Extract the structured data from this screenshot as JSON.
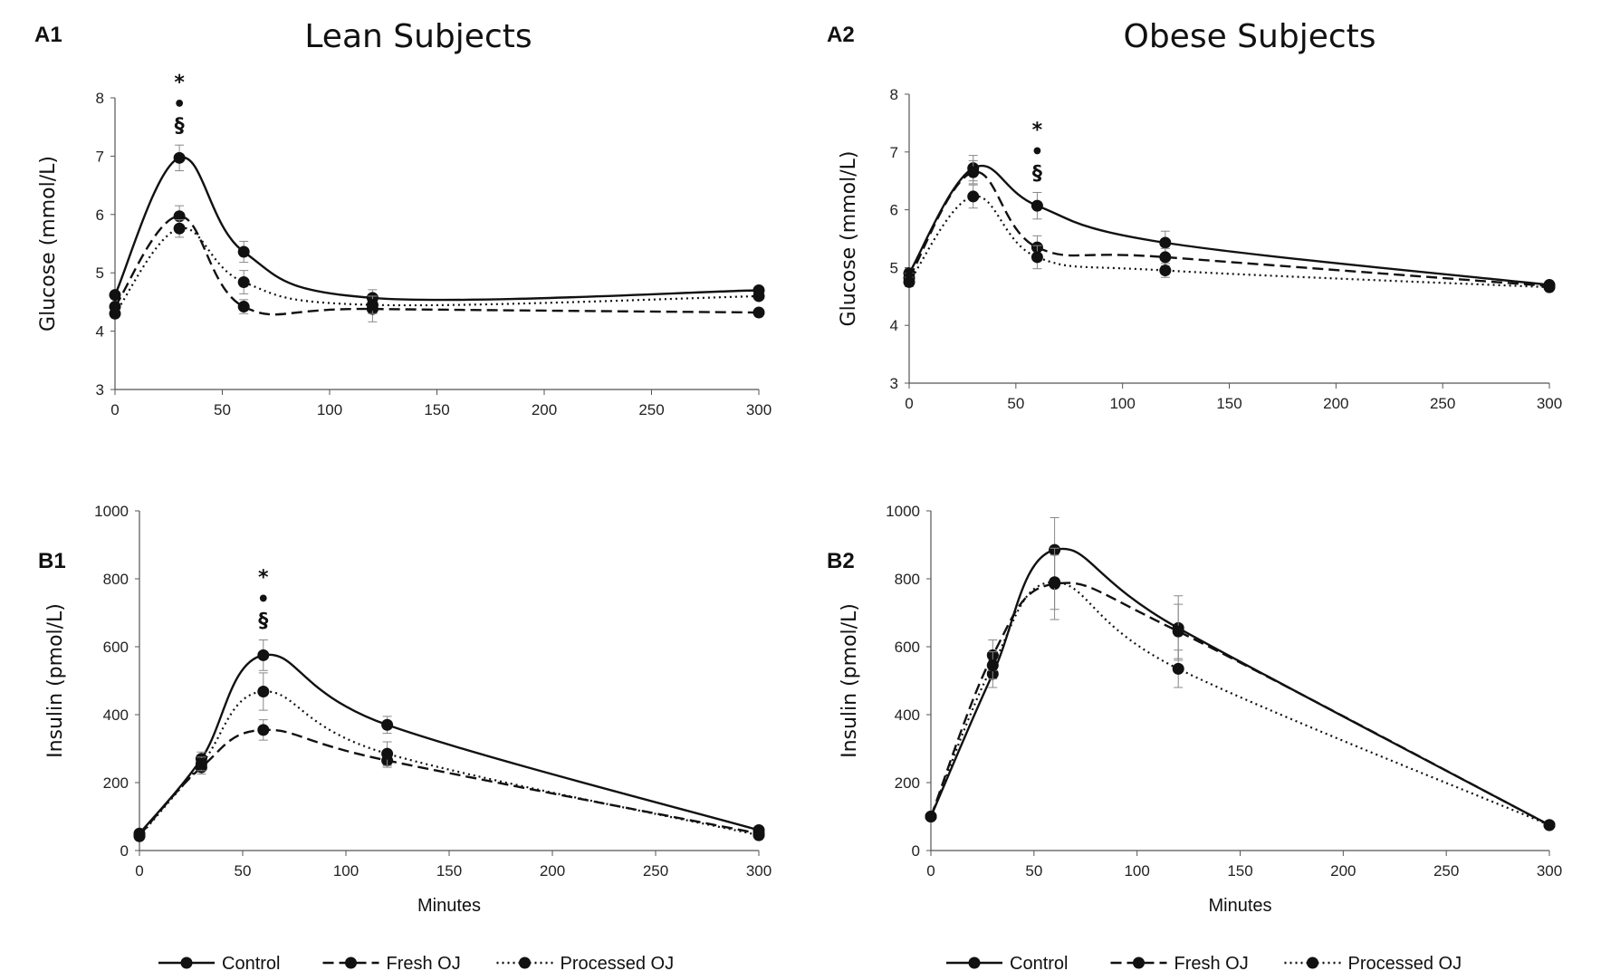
{
  "chart_data": [
    {
      "panel": "A1",
      "type": "line",
      "title": "Lean Subjects",
      "xlabel": "",
      "ylabel": "Glucose (mmol/L)",
      "xlim": [
        0,
        300
      ],
      "ylim": [
        3,
        8
      ],
      "xticks": [
        "0",
        "50",
        "100",
        "150",
        "200",
        "250",
        "300"
      ],
      "yticks": [
        "3",
        "4",
        "5",
        "6",
        "7",
        "8"
      ],
      "x": [
        0,
        30,
        60,
        120,
        300
      ],
      "series": [
        {
          "name": "Control",
          "style": "solid",
          "values": [
            4.62,
            6.97,
            5.36,
            4.57,
            4.7
          ],
          "errors": [
            0.05,
            0.22,
            0.18,
            0.14,
            0.05
          ]
        },
        {
          "name": "Fresh OJ",
          "style": "dashed",
          "values": [
            4.42,
            5.97,
            4.42,
            4.38,
            4.32
          ],
          "errors": [
            0.06,
            0.18,
            0.12,
            0.22,
            0.05
          ]
        },
        {
          "name": "Processed OJ",
          "style": "dotted",
          "values": [
            4.3,
            5.76,
            4.84,
            4.45,
            4.6
          ],
          "errors": [
            0.06,
            0.15,
            0.2,
            0.15,
            0.05
          ]
        }
      ],
      "annotation": {
        "x": 30,
        "symbols": [
          "*",
          "•",
          "§"
        ]
      }
    },
    {
      "panel": "A2",
      "type": "line",
      "title": "Obese Subjects",
      "xlabel": "",
      "ylabel": "Glucose (mmol/L)",
      "xlim": [
        0,
        300
      ],
      "ylim": [
        3,
        8
      ],
      "xticks": [
        "0",
        "50",
        "100",
        "150",
        "200",
        "250",
        "300"
      ],
      "yticks": [
        "3",
        "4",
        "5",
        "6",
        "7",
        "8"
      ],
      "x": [
        0,
        30,
        60,
        120,
        300
      ],
      "series": [
        {
          "name": "Control",
          "style": "solid",
          "values": [
            4.9,
            6.72,
            6.07,
            5.43,
            4.7
          ],
          "errors": [
            0.08,
            0.22,
            0.23,
            0.2,
            0.05
          ]
        },
        {
          "name": "Fresh OJ",
          "style": "dashed",
          "values": [
            4.82,
            6.65,
            5.35,
            5.18,
            4.68
          ],
          "errors": [
            0.08,
            0.2,
            0.2,
            0.15,
            0.05
          ]
        },
        {
          "name": "Processed OJ",
          "style": "dotted",
          "values": [
            4.75,
            6.23,
            5.18,
            4.95,
            4.66
          ],
          "errors": [
            0.08,
            0.2,
            0.2,
            0.12,
            0.05
          ]
        }
      ],
      "annotation": {
        "x": 60,
        "symbols": [
          "*",
          "•",
          "§"
        ]
      }
    },
    {
      "panel": "B1",
      "type": "line",
      "title": "",
      "xlabel": "Minutes",
      "ylabel": "Insulin (pmol/L)",
      "xlim": [
        0,
        300
      ],
      "ylim": [
        0,
        1000
      ],
      "xticks": [
        "0",
        "50",
        "100",
        "150",
        "200",
        "250",
        "300"
      ],
      "yticks": [
        "0",
        "200",
        "400",
        "600",
        "800",
        "1000"
      ],
      "x": [
        0,
        30,
        60,
        120,
        300
      ],
      "series": [
        {
          "name": "Control",
          "style": "solid",
          "values": [
            50,
            270,
            575,
            370,
            60
          ],
          "errors": [
            8,
            20,
            45,
            25,
            8
          ]
        },
        {
          "name": "Fresh OJ",
          "style": "dashed",
          "values": [
            45,
            245,
            355,
            265,
            50
          ],
          "errors": [
            8,
            20,
            30,
            20,
            8
          ]
        },
        {
          "name": "Processed OJ",
          "style": "dotted",
          "values": [
            42,
            255,
            468,
            285,
            45
          ],
          "errors": [
            8,
            20,
            55,
            35,
            8
          ]
        }
      ],
      "annotation": {
        "x": 60,
        "symbols": [
          "*",
          "•",
          "§"
        ]
      }
    },
    {
      "panel": "B2",
      "type": "line",
      "title": "",
      "xlabel": "Minutes",
      "ylabel": "Insulin (pmol/L)",
      "xlim": [
        0,
        300
      ],
      "ylim": [
        0,
        1000
      ],
      "xticks": [
        "0",
        "50",
        "100",
        "150",
        "200",
        "250",
        "300"
      ],
      "yticks": [
        "0",
        "200",
        "400",
        "600",
        "800",
        "1000"
      ],
      "x": [
        0,
        30,
        60,
        120,
        300
      ],
      "series": [
        {
          "name": "Control",
          "style": "solid",
          "values": [
            100,
            520,
            885,
            655,
            75
          ],
          "errors": [
            10,
            40,
            95,
            95,
            8
          ]
        },
        {
          "name": "Fresh OJ",
          "style": "dashed",
          "values": [
            100,
            575,
            785,
            645,
            75
          ],
          "errors": [
            10,
            45,
            105,
            80,
            8
          ]
        },
        {
          "name": "Processed OJ",
          "style": "dotted",
          "values": [
            100,
            545,
            790,
            535,
            75
          ],
          "errors": [
            10,
            40,
            80,
            55,
            8
          ]
        }
      ],
      "annotation": null
    }
  ],
  "legend": {
    "items": [
      {
        "label": "Control",
        "style": "solid"
      },
      {
        "label": "Fresh OJ",
        "style": "dashed"
      },
      {
        "label": "Processed OJ",
        "style": "dotted"
      }
    ]
  }
}
